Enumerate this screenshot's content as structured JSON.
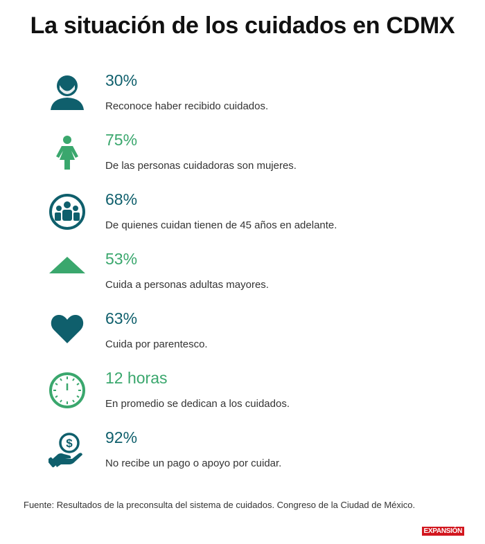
{
  "title": "La situación de los cuidados en CDMX",
  "colors": {
    "teal": "#0f5f6c",
    "green": "#3aa76d",
    "brand_red": "#d2161e"
  },
  "items": [
    {
      "value": "30%",
      "text": "Reconoce haber recibido cuidados.",
      "icon": "person-icon",
      "color": "#0f5f6c"
    },
    {
      "value": "75%",
      "text": "De las personas cuidadoras son mujeres.",
      "icon": "woman-icon",
      "color": "#3aa76d"
    },
    {
      "value": "68%",
      "text": "De quienes cuidan tienen de 45 años en adelante.",
      "icon": "group-icon",
      "color": "#0f5f6c"
    },
    {
      "value": "53%",
      "text": "Cuida a personas adultas mayores.",
      "icon": "triangle-icon",
      "color": "#3aa76d"
    },
    {
      "value": "63%",
      "text": "Cuida por parentesco.",
      "icon": "heart-icon",
      "color": "#0f5f6c"
    },
    {
      "value": "12 horas",
      "text": "En promedio se dedican a los cuidados.",
      "icon": "clock-icon",
      "color": "#3aa76d"
    },
    {
      "value": "92%",
      "text": "No recibe un pago o apoyo por cuidar.",
      "icon": "money-hand-icon",
      "color": "#0f5f6c"
    }
  ],
  "source": "Fuente: Resultados de la preconsulta del sistema de cuidados. Congreso de la Ciudad de México.",
  "logo_text": "EXPANSIÓN"
}
